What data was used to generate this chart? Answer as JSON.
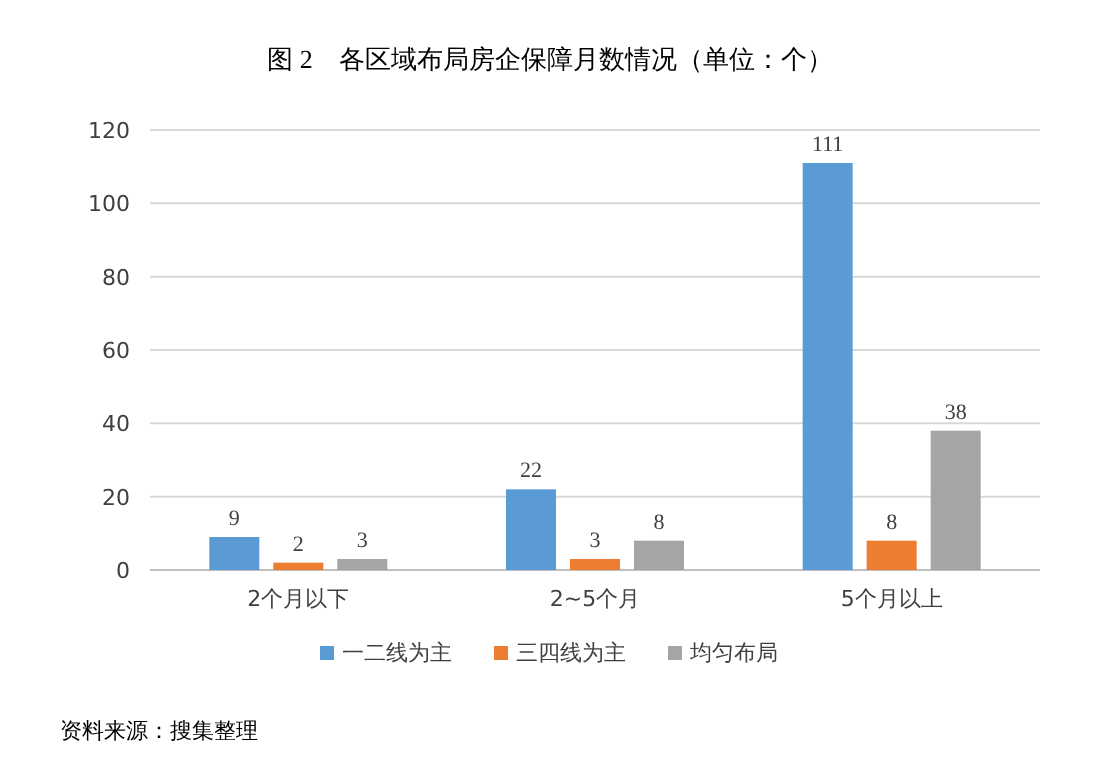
{
  "chart_data": {
    "type": "bar",
    "title": "图 2　各区域布局房企保障月数情况（单位：个）",
    "categories": [
      "2个月以下",
      "2~5个月",
      "5个月以上"
    ],
    "series": [
      {
        "name": "一二线为主",
        "color": "#5b9bd5",
        "values": [
          9,
          22,
          111
        ]
      },
      {
        "name": "三四线为主",
        "color": "#ed7d31",
        "values": [
          2,
          3,
          8
        ]
      },
      {
        "name": "均匀布局",
        "color": "#a5a5a5",
        "values": [
          3,
          8,
          38
        ]
      }
    ],
    "ylim": [
      0,
      120
    ],
    "yticks": [
      0,
      20,
      40,
      60,
      80,
      100,
      120
    ],
    "grid": "y",
    "legend": "bottom",
    "data_labels": true,
    "annotations": [
      "资料来源：搜集整理"
    ]
  }
}
